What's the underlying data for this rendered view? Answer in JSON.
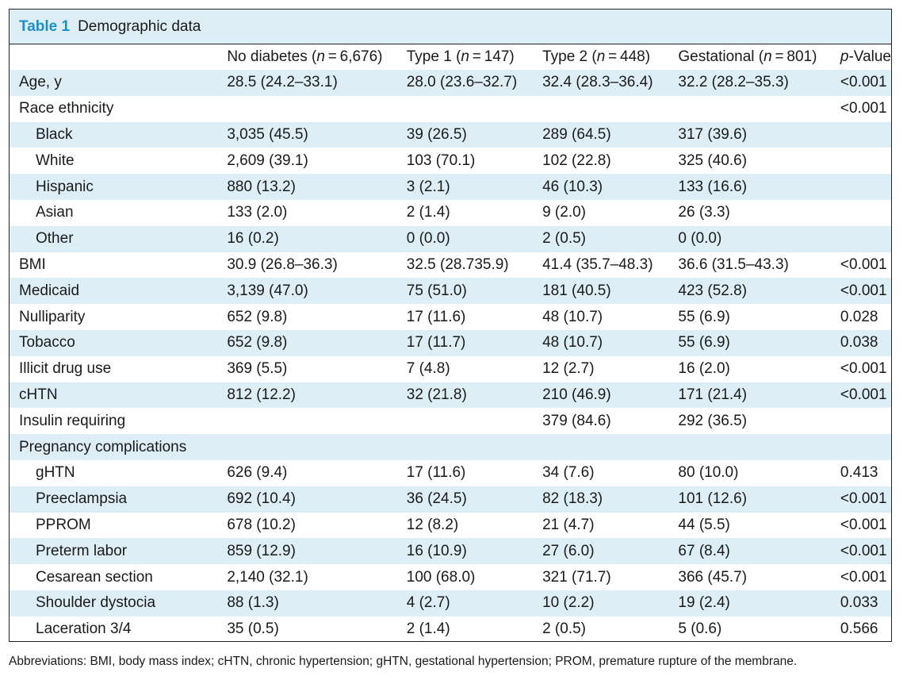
{
  "table": {
    "label": "Table 1",
    "caption": "Demographic data",
    "headers": [
      "",
      "No diabetes (n = 6,676)",
      "Type 1 (n = 147)",
      "Type 2 (n = 448)",
      "Gestational (n = 801)",
      "p-Value"
    ],
    "rows": [
      {
        "label": "Age, y",
        "indent": false,
        "cells": [
          "28.5 (24.2–33.1)",
          "28.0 (23.6–32.7)",
          "32.4 (28.3–36.4)",
          "32.2 (28.2–35.3)",
          "<0.001"
        ]
      },
      {
        "label": "Race ethnicity",
        "indent": false,
        "cells": [
          "",
          "",
          "",
          "",
          "<0.001"
        ]
      },
      {
        "label": "Black",
        "indent": true,
        "cells": [
          "3,035 (45.5)",
          "39 (26.5)",
          "289 (64.5)",
          "317 (39.6)",
          ""
        ]
      },
      {
        "label": "White",
        "indent": true,
        "cells": [
          "2,609 (39.1)",
          "103 (70.1)",
          "102 (22.8)",
          "325 (40.6)",
          ""
        ]
      },
      {
        "label": "Hispanic",
        "indent": true,
        "cells": [
          "880 (13.2)",
          "3 (2.1)",
          "46 (10.3)",
          "133 (16.6)",
          ""
        ]
      },
      {
        "label": "Asian",
        "indent": true,
        "cells": [
          "133 (2.0)",
          "2 (1.4)",
          "9 (2.0)",
          "26 (3.3)",
          ""
        ]
      },
      {
        "label": "Other",
        "indent": true,
        "cells": [
          "16 (0.2)",
          "0 (0.0)",
          "2 (0.5)",
          "0 (0.0)",
          ""
        ]
      },
      {
        "label": "BMI",
        "indent": false,
        "cells": [
          "30.9 (26.8–36.3)",
          "32.5 (28.735.9)",
          "41.4 (35.7–48.3)",
          "36.6 (31.5–43.3)",
          "<0.001"
        ]
      },
      {
        "label": "Medicaid",
        "indent": false,
        "cells": [
          "3,139 (47.0)",
          "75 (51.0)",
          "181 (40.5)",
          "423 (52.8)",
          "<0.001"
        ]
      },
      {
        "label": "Nulliparity",
        "indent": false,
        "cells": [
          "652 (9.8)",
          "17 (11.6)",
          "48 (10.7)",
          "55 (6.9)",
          "0.028"
        ]
      },
      {
        "label": "Tobacco",
        "indent": false,
        "cells": [
          "652 (9.8)",
          "17 (11.7)",
          "48 (10.7)",
          "55 (6.9)",
          "0.038"
        ]
      },
      {
        "label": "Illicit drug use",
        "indent": false,
        "cells": [
          "369 (5.5)",
          "7 (4.8)",
          "12 (2.7)",
          "16 (2.0)",
          "<0.001"
        ]
      },
      {
        "label": "cHTN",
        "indent": false,
        "cells": [
          "812 (12.2)",
          "32 (21.8)",
          "210 (46.9)",
          "171 (21.4)",
          "<0.001"
        ]
      },
      {
        "label": "Insulin requiring",
        "indent": false,
        "cells": [
          "",
          "",
          "379 (84.6)",
          "292 (36.5)",
          ""
        ]
      },
      {
        "label": "Pregnancy complications",
        "indent": false,
        "cells": [
          "",
          "",
          "",
          "",
          ""
        ]
      },
      {
        "label": "gHTN",
        "indent": true,
        "cells": [
          "626 (9.4)",
          "17 (11.6)",
          "34 (7.6)",
          "80 (10.0)",
          "0.413"
        ]
      },
      {
        "label": "Preeclampsia",
        "indent": true,
        "cells": [
          "692 (10.4)",
          "36 (24.5)",
          "82 (18.3)",
          "101 (12.6)",
          "<0.001"
        ]
      },
      {
        "label": "PPROM",
        "indent": true,
        "cells": [
          "678 (10.2)",
          "12 (8.2)",
          "21 (4.7)",
          "44 (5.5)",
          "<0.001"
        ]
      },
      {
        "label": "Preterm labor",
        "indent": true,
        "cells": [
          "859 (12.9)",
          "16 (10.9)",
          "27 (6.0)",
          "67 (8.4)",
          "<0.001"
        ]
      },
      {
        "label": "Cesarean section",
        "indent": true,
        "cells": [
          "2,140 (32.1)",
          "100 (68.0)",
          "321 (71.7)",
          "366 (45.7)",
          "<0.001"
        ]
      },
      {
        "label": "Shoulder dystocia",
        "indent": true,
        "cells": [
          "88 (1.3)",
          "4 (2.7)",
          "10 (2.2)",
          "19 (2.4)",
          "0.033"
        ]
      },
      {
        "label": "Laceration 3/4",
        "indent": true,
        "cells": [
          "35 (0.5)",
          "2 (1.4)",
          "2 (0.5)",
          "5 (0.6)",
          "0.566"
        ]
      }
    ],
    "footnote": "Abbreviations: BMI, body mass index; cHTN, chronic hypertension; gHTN, gestational hypertension; PROM, premature rupture of the membrane."
  }
}
